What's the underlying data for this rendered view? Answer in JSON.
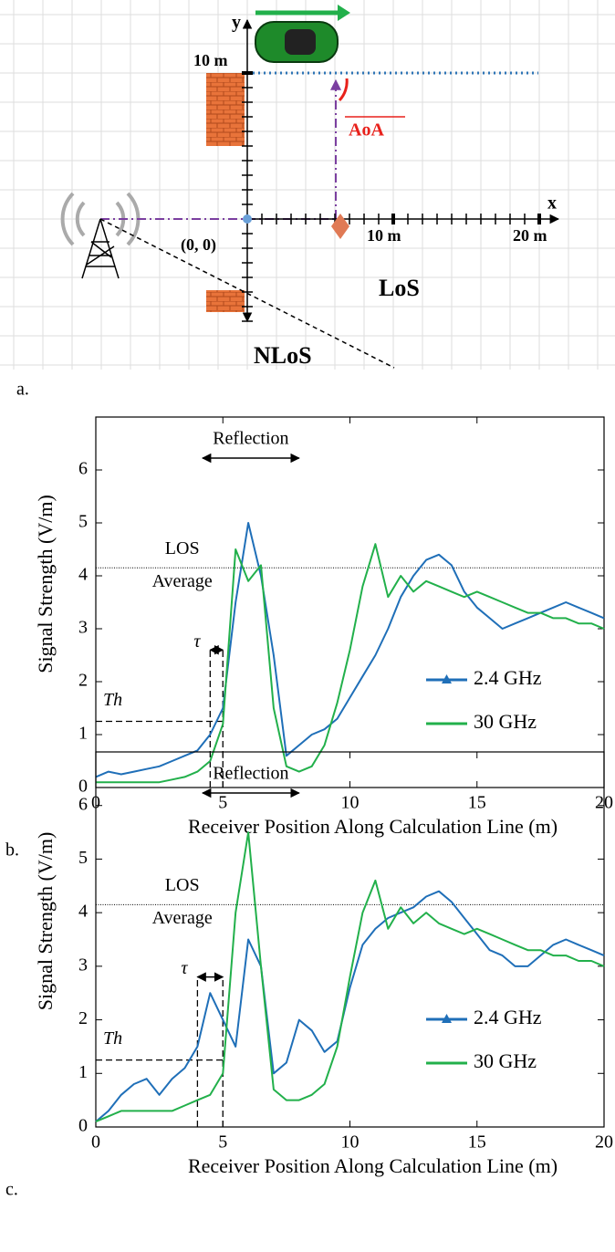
{
  "diagram": {
    "panel": "a.",
    "y_axis": "y",
    "x_axis": "x",
    "y_tick": "10 m",
    "x_ticks": [
      "10 m",
      "20 m"
    ],
    "origin": "(0, 0)",
    "aoa": "AoA",
    "los": "LoS",
    "nlos": "NLoS"
  },
  "chart_data": [
    {
      "type": "line",
      "panel": "b.",
      "x_label": "Receiver Position Along Calculation Line (m)",
      "y_label": "Signal Strength (V/m)",
      "xlim": [
        0,
        20
      ],
      "xticks": [
        0,
        5,
        10,
        15,
        20
      ],
      "ylim": [
        0,
        7
      ],
      "yticks": [
        0,
        1,
        2,
        3,
        4,
        5,
        6
      ],
      "legend": "lower right",
      "x": [
        0,
        0.5,
        1,
        1.5,
        2,
        2.5,
        3,
        3.5,
        4,
        4.5,
        5,
        5.5,
        6,
        6.5,
        7,
        7.5,
        8,
        8.5,
        9,
        9.5,
        10,
        10.5,
        11,
        11.5,
        12,
        12.5,
        13,
        13.5,
        14,
        14.5,
        15,
        15.5,
        16,
        16.5,
        17,
        17.5,
        18,
        18.5,
        19,
        19.5,
        20
      ],
      "series": [
        {
          "name": "2.4 GHz",
          "color": "#1f6fb8",
          "values": [
            0.2,
            0.3,
            0.25,
            0.3,
            0.35,
            0.4,
            0.5,
            0.6,
            0.7,
            1.0,
            1.5,
            3.5,
            5.0,
            4.0,
            2.5,
            0.6,
            0.8,
            1.0,
            1.1,
            1.3,
            1.7,
            2.1,
            2.5,
            3.0,
            3.6,
            4.0,
            4.3,
            4.4,
            4.2,
            3.7,
            3.4,
            3.2,
            3.0,
            3.1,
            3.2,
            3.3,
            3.4,
            3.5,
            3.4,
            3.3,
            3.2
          ]
        },
        {
          "name": "30 GHz",
          "color": "#22b04b",
          "values": [
            0.1,
            0.1,
            0.1,
            0.1,
            0.1,
            0.1,
            0.15,
            0.2,
            0.3,
            0.5,
            1.2,
            4.5,
            3.9,
            4.2,
            1.5,
            0.4,
            0.3,
            0.4,
            0.8,
            1.6,
            2.6,
            3.8,
            4.6,
            3.6,
            4.0,
            3.7,
            3.9,
            3.8,
            3.7,
            3.6,
            3.7,
            3.6,
            3.5,
            3.4,
            3.3,
            3.3,
            3.2,
            3.2,
            3.1,
            3.1,
            3.0
          ]
        }
      ],
      "los_average": 4.15,
      "los_label": "LOS",
      "average_label": "Average",
      "reflection_label": "Reflection",
      "reflection_range": [
        4.2,
        8
      ],
      "threshold_label": "Th",
      "threshold": 1.25,
      "tau_label": "τ",
      "tau_range": [
        4.5,
        5
      ],
      "tau_height": 2.6
    },
    {
      "type": "line",
      "panel": "c.",
      "x_label": "Receiver Position Along Calculation Line (m)",
      "y_label": "Signal Strength (V/m)",
      "xlim": [
        0,
        20
      ],
      "xticks": [
        0,
        5,
        10,
        15,
        20
      ],
      "ylim": [
        0,
        7
      ],
      "yticks": [
        0,
        1,
        2,
        3,
        4,
        5,
        6
      ],
      "legend": "lower right",
      "x": [
        0,
        0.5,
        1,
        1.5,
        2,
        2.5,
        3,
        3.5,
        4,
        4.5,
        5,
        5.5,
        6,
        6.5,
        7,
        7.5,
        8,
        8.5,
        9,
        9.5,
        10,
        10.5,
        11,
        11.5,
        12,
        12.5,
        13,
        13.5,
        14,
        14.5,
        15,
        15.5,
        16,
        16.5,
        17,
        17.5,
        18,
        18.5,
        19,
        19.5,
        20
      ],
      "series": [
        {
          "name": "2.4 GHz",
          "color": "#1f6fb8",
          "values": [
            0.1,
            0.3,
            0.6,
            0.8,
            0.9,
            0.6,
            0.9,
            1.1,
            1.5,
            2.5,
            2.0,
            1.5,
            3.5,
            3.0,
            1.0,
            1.2,
            2.0,
            1.8,
            1.4,
            1.6,
            2.6,
            3.4,
            3.7,
            3.9,
            4.0,
            4.1,
            4.3,
            4.4,
            4.2,
            3.9,
            3.6,
            3.3,
            3.2,
            3.0,
            3.0,
            3.2,
            3.4,
            3.5,
            3.4,
            3.3,
            3.2
          ]
        },
        {
          "name": "30 GHz",
          "color": "#22b04b",
          "values": [
            0.1,
            0.2,
            0.3,
            0.3,
            0.3,
            0.3,
            0.3,
            0.4,
            0.5,
            0.6,
            1.0,
            4.0,
            5.5,
            3.0,
            0.7,
            0.5,
            0.5,
            0.6,
            0.8,
            1.5,
            2.8,
            4.0,
            4.6,
            3.7,
            4.1,
            3.8,
            4.0,
            3.8,
            3.7,
            3.6,
            3.7,
            3.6,
            3.5,
            3.4,
            3.3,
            3.3,
            3.2,
            3.2,
            3.1,
            3.1,
            3.0
          ]
        }
      ],
      "los_average": 4.15,
      "los_label": "LOS",
      "average_label": "Average",
      "reflection_label": "Reflection",
      "reflection_range": [
        4.2,
        8
      ],
      "threshold_label": "Th",
      "threshold": 1.25,
      "tau_label": "τ",
      "tau_range": [
        4,
        5
      ],
      "tau_height": 2.8
    }
  ]
}
